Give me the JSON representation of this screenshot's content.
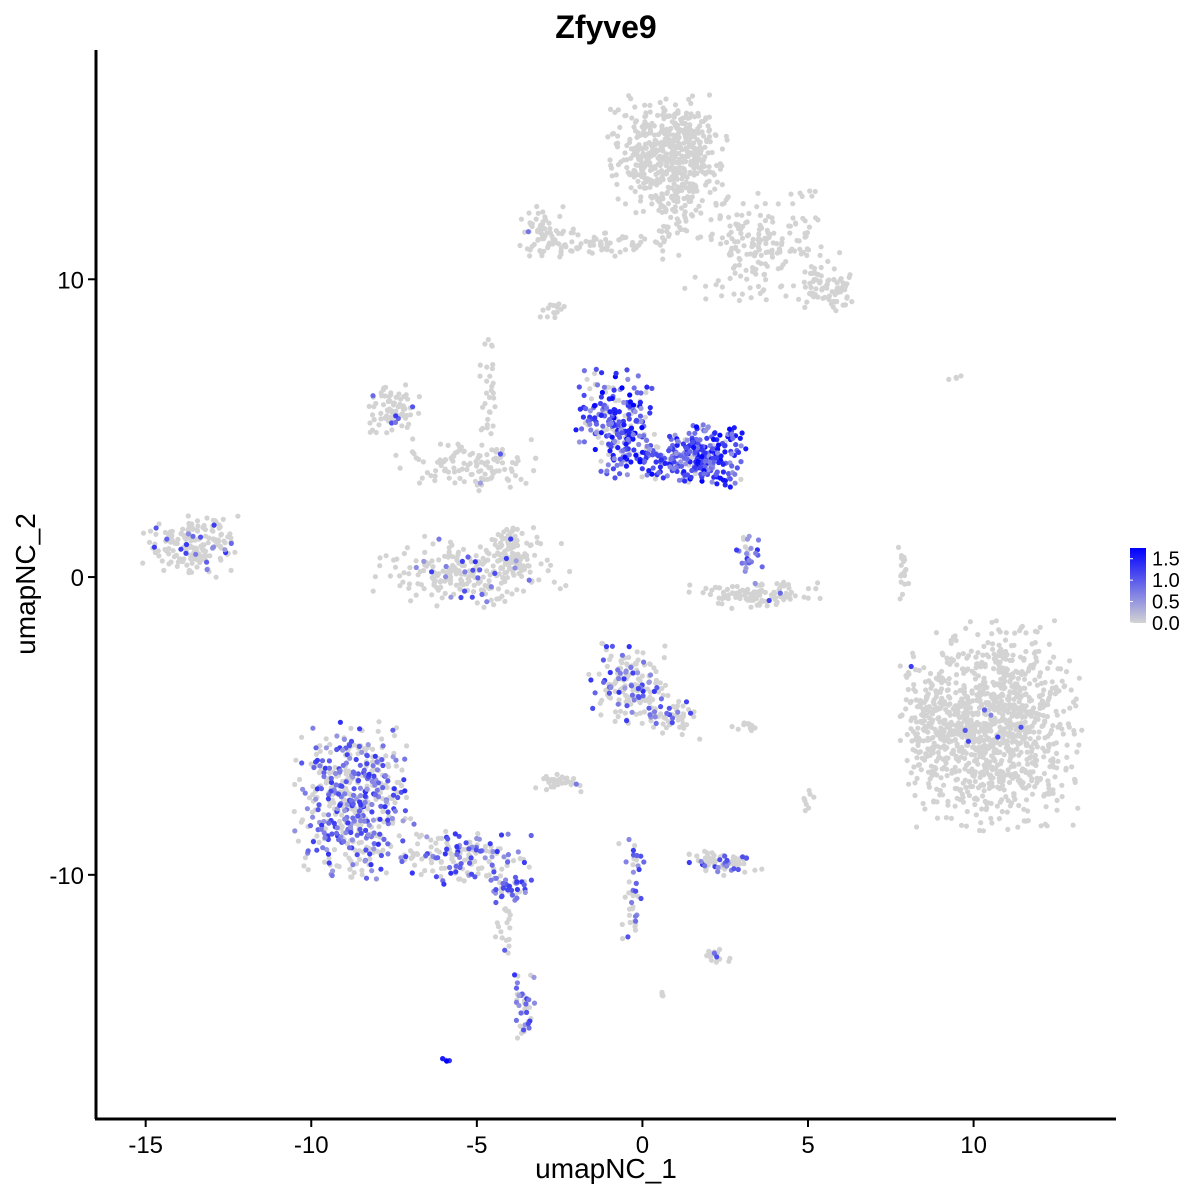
{
  "chart_data": {
    "type": "scatter",
    "title": "Zfyve9",
    "xlabel": "umapNC_1",
    "ylabel": "umapNC_2",
    "xlim": [
      -16.5,
      14.3
    ],
    "ylim": [
      -18.2,
      17.7
    ],
    "x_ticks": [
      -15,
      -10,
      -5,
      0,
      5,
      10
    ],
    "x_tick_labels": [
      "-15",
      "-10",
      "-5",
      "0",
      "5",
      "10"
    ],
    "y_ticks": [
      -10,
      0,
      10
    ],
    "y_tick_labels": [
      "-10",
      "0",
      "10"
    ],
    "grid": false,
    "legend": {
      "placement": "right",
      "range": [
        0.0,
        1.75
      ],
      "ticks": [
        0.0,
        0.5,
        1.0,
        1.5
      ],
      "tick_labels": [
        "0.0",
        "0.5",
        "1.0",
        "1.5"
      ],
      "low_color": "#d3d3d3",
      "high_color": "#0000ff"
    },
    "clusters": [
      {
        "name": "top-blob",
        "cx": 0.8,
        "cy": 14.2,
        "rx": 1.2,
        "ry": 1.3,
        "n": 520,
        "expr_frac": 0.0
      },
      {
        "name": "top-stem",
        "cx": 0.9,
        "cy": 12.4,
        "rx": 0.4,
        "ry": 1.2,
        "n": 60,
        "expr_frac": 0.0
      },
      {
        "name": "top-right-arm",
        "cx": 3.5,
        "cy": 11.2,
        "rx": 1.6,
        "ry": 1.3,
        "n": 200,
        "expr_frac": 0.0
      },
      {
        "name": "top-right-tip",
        "cx": 5.6,
        "cy": 9.7,
        "rx": 0.6,
        "ry": 0.5,
        "n": 70,
        "expr_frac": 0.0
      },
      {
        "name": "top-left-arm",
        "cx": -2.8,
        "cy": 11.6,
        "rx": 0.6,
        "ry": 0.6,
        "n": 70,
        "expr_frac": 0.03
      },
      {
        "name": "top-left-bridge",
        "cx": -1.0,
        "cy": 11.2,
        "rx": 1.2,
        "ry": 0.3,
        "n": 60,
        "expr_frac": 0.0
      },
      {
        "name": "small-top-left",
        "cx": -2.7,
        "cy": 8.9,
        "rx": 0.3,
        "ry": 0.3,
        "n": 15,
        "expr_frac": 0.0
      },
      {
        "name": "mid-center-left",
        "cx": -0.8,
        "cy": 5.2,
        "rx": 0.8,
        "ry": 1.2,
        "n": 220,
        "expr_frac": 0.75
      },
      {
        "name": "mid-center-right",
        "cx": 2.0,
        "cy": 4.1,
        "rx": 0.8,
        "ry": 0.8,
        "n": 200,
        "expr_frac": 0.9
      },
      {
        "name": "mid-center-bridge",
        "cx": 0.6,
        "cy": 4.0,
        "rx": 1.1,
        "ry": 0.5,
        "n": 120,
        "expr_frac": 0.7
      },
      {
        "name": "mid-left-blob",
        "cx": -7.5,
        "cy": 5.6,
        "rx": 0.5,
        "ry": 0.6,
        "n": 80,
        "expr_frac": 0.05
      },
      {
        "name": "mid-left-stream",
        "cx": -5.0,
        "cy": 3.8,
        "rx": 1.6,
        "ry": 0.6,
        "n": 120,
        "expr_frac": 0.02
      },
      {
        "name": "mid-left-spike",
        "cx": -4.6,
        "cy": 6.0,
        "rx": 0.2,
        "ry": 1.3,
        "n": 30,
        "expr_frac": 0.0
      },
      {
        "name": "mid-u-shape",
        "cx": -5.2,
        "cy": 0.2,
        "rx": 2.0,
        "ry": 0.8,
        "n": 240,
        "expr_frac": 0.08
      },
      {
        "name": "mid-u-right",
        "cx": -3.9,
        "cy": 0.9,
        "rx": 0.5,
        "ry": 0.7,
        "n": 80,
        "expr_frac": 0.05
      },
      {
        "name": "mid-right-crescent",
        "cx": 3.4,
        "cy": -0.6,
        "rx": 1.3,
        "ry": 0.3,
        "n": 110,
        "expr_frac": 0.02
      },
      {
        "name": "mid-right-dots",
        "cx": 3.2,
        "cy": 0.8,
        "rx": 0.3,
        "ry": 0.4,
        "n": 25,
        "expr_frac": 0.55
      },
      {
        "name": "left-island",
        "cx": -13.6,
        "cy": 1.0,
        "rx": 1.0,
        "ry": 0.7,
        "n": 180,
        "expr_frac": 0.1
      },
      {
        "name": "right-big-blob",
        "cx": 10.5,
        "cy": -5.0,
        "rx": 1.8,
        "ry": 2.3,
        "n": 1100,
        "expr_frac": 0.005
      },
      {
        "name": "right-big-tail",
        "cx": 8.7,
        "cy": -4.8,
        "rx": 0.6,
        "ry": 1.2,
        "n": 80,
        "expr_frac": 0.01
      },
      {
        "name": "right-thin-line",
        "cx": 7.9,
        "cy": 0.1,
        "rx": 0.12,
        "ry": 0.9,
        "n": 20,
        "expr_frac": 0.0
      },
      {
        "name": "lower-mid-blob",
        "cx": -0.4,
        "cy": -3.6,
        "rx": 0.8,
        "ry": 0.9,
        "n": 170,
        "expr_frac": 0.35
      },
      {
        "name": "lower-mid-arm",
        "cx": 0.9,
        "cy": -4.7,
        "rx": 0.6,
        "ry": 0.5,
        "n": 50,
        "expr_frac": 0.3
      },
      {
        "name": "lower-left-triangle",
        "cx": -8.7,
        "cy": -7.6,
        "rx": 1.2,
        "ry": 1.8,
        "n": 520,
        "expr_frac": 0.45
      },
      {
        "name": "lower-left-stream",
        "cx": -5.4,
        "cy": -9.4,
        "rx": 1.4,
        "ry": 0.6,
        "n": 160,
        "expr_frac": 0.45
      },
      {
        "name": "lower-left-stream-end",
        "cx": -4.0,
        "cy": -10.4,
        "rx": 0.4,
        "ry": 0.3,
        "n": 40,
        "expr_frac": 0.6
      },
      {
        "name": "lower-tail",
        "cx": -3.6,
        "cy": -14.3,
        "rx": 0.25,
        "ry": 0.9,
        "n": 40,
        "expr_frac": 0.5
      },
      {
        "name": "lower-tail-mid",
        "cx": -4.2,
        "cy": -11.7,
        "rx": 0.3,
        "ry": 0.9,
        "n": 20,
        "expr_frac": 0.3
      },
      {
        "name": "lower-small-cluster",
        "cx": -2.5,
        "cy": -6.9,
        "rx": 0.5,
        "ry": 0.25,
        "n": 35,
        "expr_frac": 0.05
      },
      {
        "name": "lower-center-line",
        "cx": -0.3,
        "cy": -10.6,
        "rx": 0.3,
        "ry": 1.4,
        "n": 45,
        "expr_frac": 0.35
      },
      {
        "name": "lower-right-cluster",
        "cx": 2.4,
        "cy": -9.6,
        "rx": 0.8,
        "ry": 0.3,
        "n": 70,
        "expr_frac": 0.25
      },
      {
        "name": "lower-right-small",
        "cx": 2.2,
        "cy": -12.7,
        "rx": 0.4,
        "ry": 0.2,
        "n": 20,
        "expr_frac": 0.05
      },
      {
        "name": "lower-right-dots",
        "cx": 3.1,
        "cy": -5.0,
        "rx": 0.35,
        "ry": 0.12,
        "n": 12,
        "expr_frac": 0.0
      },
      {
        "name": "lower-far-dot",
        "cx": -5.9,
        "cy": -16.2,
        "rx": 0.2,
        "ry": 0.1,
        "n": 6,
        "expr_frac": 0.8
      },
      {
        "name": "lower-mid-dot",
        "cx": 0.6,
        "cy": -14.0,
        "rx": 0.15,
        "ry": 0.1,
        "n": 4,
        "expr_frac": 0.0
      },
      {
        "name": "lower-right-pair",
        "cx": 5.0,
        "cy": -7.6,
        "rx": 0.15,
        "ry": 0.4,
        "n": 8,
        "expr_frac": 0.0
      },
      {
        "name": "far-right-dots",
        "cx": 9.5,
        "cy": 6.7,
        "rx": 0.2,
        "ry": 0.05,
        "n": 4,
        "expr_frac": 0.0
      }
    ]
  }
}
